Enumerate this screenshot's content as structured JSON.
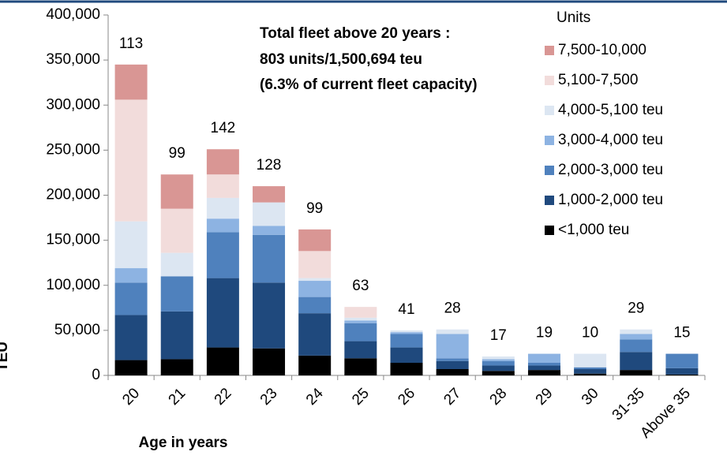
{
  "chart_data": {
    "type": "stacked_bar",
    "annotation": [
      "Total fleet above 20 years  :",
      "803 units/1,500,694 teu",
      "(6.3% of current fleet capacity)"
    ],
    "xlabel": "Age in years",
    "ylabel": "TEU",
    "legend_title": "Units",
    "categories": [
      "20",
      "21",
      "22",
      "23",
      "24",
      "25",
      "26",
      "27",
      "28",
      "29",
      "30",
      "31-35",
      "Above 35"
    ],
    "bar_labels": [
      113,
      99,
      142,
      128,
      99,
      63,
      41,
      28,
      17,
      19,
      10,
      29,
      15
    ],
    "series": [
      {
        "name": "<1,000 teu",
        "color": "#000000",
        "values": [
          17000,
          18000,
          31000,
          30000,
          22000,
          19000,
          14000,
          7000,
          5000,
          6000,
          2000,
          6000,
          1000
        ]
      },
      {
        "name": "1,000-2,000 teu",
        "color": "#1f497d",
        "values": [
          50000,
          53000,
          77000,
          73000,
          47000,
          19000,
          17000,
          9000,
          6000,
          5000,
          5000,
          20000,
          7000
        ]
      },
      {
        "name": "2,000-3,000 teu",
        "color": "#4f81bd",
        "values": [
          36000,
          39000,
          51000,
          53000,
          18000,
          20000,
          15000,
          3000,
          5000,
          3000,
          2000,
          14000,
          16000
        ]
      },
      {
        "name": "3,000-4,000 teu",
        "color": "#8db3e2",
        "values": [
          16000,
          0,
          15000,
          10000,
          18000,
          3000,
          2000,
          27000,
          2000,
          10000,
          0,
          6000,
          0
        ]
      },
      {
        "name": "4,000-5,100 teu",
        "color": "#dce6f2",
        "values": [
          52000,
          26000,
          23000,
          26000,
          3000,
          3000,
          2000,
          5000,
          3000,
          0,
          15000,
          5000,
          0
        ]
      },
      {
        "name": "5,100-7,500",
        "color": "#f2dcdb",
        "values": [
          135000,
          49000,
          26000,
          0,
          30000,
          12000,
          0,
          0,
          0,
          0,
          0,
          0,
          0
        ]
      },
      {
        "name": "7,500-10,000",
        "color": "#d99694",
        "values": [
          39000,
          38000,
          28000,
          18000,
          24000,
          0,
          0,
          0,
          0,
          0,
          0,
          0,
          0
        ]
      }
    ],
    "ylim": [
      0,
      400000
    ],
    "yticks": [
      0,
      {
        "value": 50000,
        "label": "50,000"
      },
      {
        "value": 100000,
        "label": "100,000"
      },
      {
        "value": 150000,
        "label": "150,000"
      },
      {
        "value": 200000,
        "label": "200,000"
      },
      {
        "value": 250000,
        "label": "250,000"
      },
      {
        "value": 300000,
        "label": "300,000"
      },
      {
        "value": 350000,
        "label": "350,000"
      },
      {
        "value": 400000,
        "label": "400,000"
      }
    ],
    "legend": "right"
  }
}
